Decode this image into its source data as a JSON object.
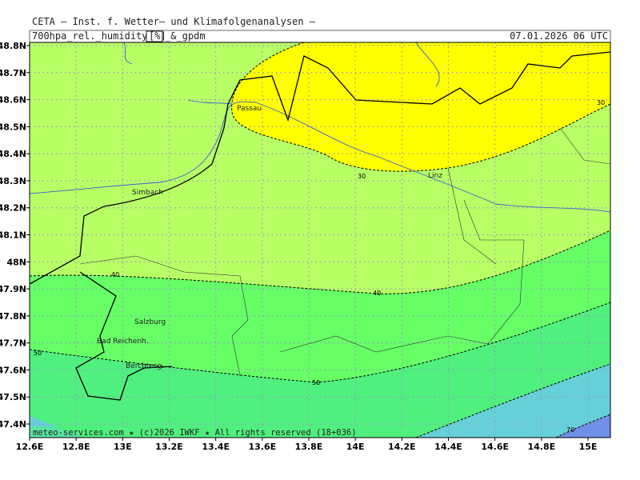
{
  "header": {
    "institute": "CETA — Inst. f. Wetter— und Klimafolgenanalysen —",
    "parameter": "700hpa_rel._humidity",
    "unit": "[%]",
    "suffix": "_&_gpdm",
    "valid_time": "07.01.2026 06 UTC"
  },
  "axes": {
    "x_ticks": [
      {
        "value": 12.6,
        "label": "12.6E"
      },
      {
        "value": 12.8,
        "label": "12.8E"
      },
      {
        "value": 13,
        "label": "13E"
      },
      {
        "value": 13.2,
        "label": "13.2E"
      },
      {
        "value": 13.4,
        "label": "13.4E"
      },
      {
        "value": 13.6,
        "label": "13.6E"
      },
      {
        "value": 13.8,
        "label": "13.8E"
      },
      {
        "value": 14,
        "label": "14E"
      },
      {
        "value": 14.2,
        "label": "14.2E"
      },
      {
        "value": 14.4,
        "label": "14.4E"
      },
      {
        "value": 14.6,
        "label": "14.6E"
      },
      {
        "value": 14.8,
        "label": "14.8E"
      },
      {
        "value": 15,
        "label": "15E"
      }
    ],
    "y_ticks": [
      {
        "value": 48.8,
        "label": "48.8N"
      },
      {
        "value": 48.7,
        "label": "48.7N"
      },
      {
        "value": 48.6,
        "label": "48.6N"
      },
      {
        "value": 48.5,
        "label": "48.5N"
      },
      {
        "value": 48.4,
        "label": "48.4N"
      },
      {
        "value": 48.3,
        "label": "48.3N"
      },
      {
        "value": 48.2,
        "label": "48.2N"
      },
      {
        "value": 48.1,
        "label": "48.1N"
      },
      {
        "value": 48,
        "label": "48N"
      },
      {
        "value": 47.9,
        "label": "47.9N"
      },
      {
        "value": 47.8,
        "label": "47.8N"
      },
      {
        "value": 47.7,
        "label": "47.7N"
      },
      {
        "value": 47.6,
        "label": "47.6N"
      },
      {
        "value": 47.5,
        "label": "47.5N"
      },
      {
        "value": 47.4,
        "label": "47.4N"
      }
    ]
  },
  "places": [
    "Passau",
    "Simbach",
    "Linz",
    "Salzburg",
    "Bad Reichenh.",
    "Berchtesg."
  ],
  "contour_labels": [
    "30",
    "30",
    "40",
    "40",
    "50",
    "50",
    "70"
  ],
  "footer": "meteo-services.com ★ (c)2026 IWKF ★ All rights reserved (18+036)"
}
